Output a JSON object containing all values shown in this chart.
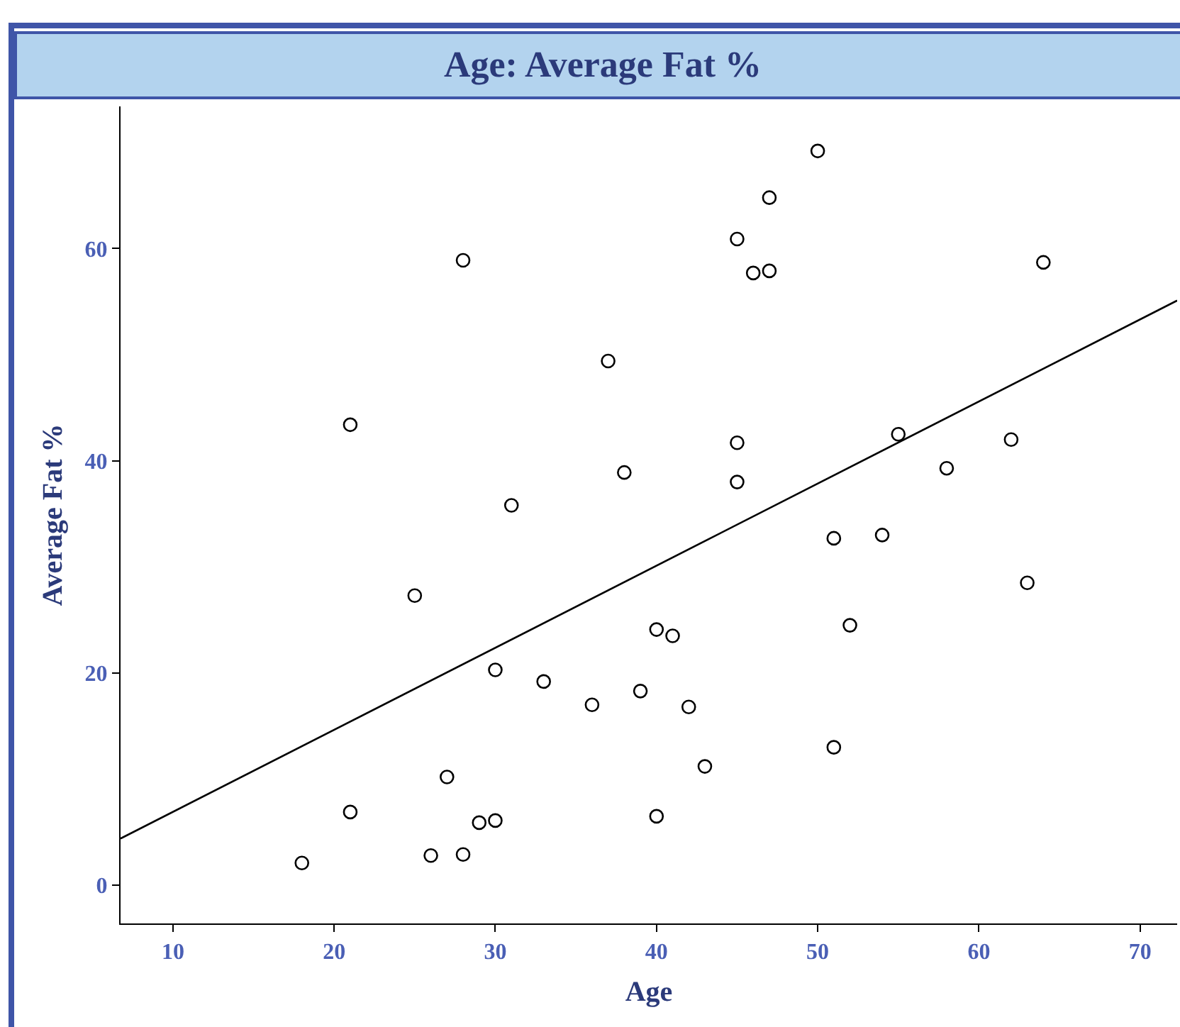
{
  "chart_data": {
    "type": "scatter",
    "title": "Age: Average Fat %",
    "xlabel": "Age",
    "ylabel": "Average Fat %",
    "xlim": [
      6.75,
      72.3
    ],
    "ylim": [
      -3.6,
      73.4
    ],
    "xticks": [
      10,
      20,
      30,
      40,
      50,
      60,
      70
    ],
    "yticks": [
      0,
      20,
      40,
      60
    ],
    "grid": false,
    "marker": "circle",
    "series": [
      {
        "color": "#000000",
        "x": [
          18,
          21,
          21,
          25,
          26,
          27,
          28,
          28,
          29,
          30,
          30,
          31,
          33,
          36,
          37,
          38,
          39,
          40,
          40,
          41,
          42,
          43,
          45,
          45,
          45,
          46,
          47,
          47,
          50,
          51,
          51,
          52,
          54,
          55,
          58,
          62,
          63,
          64
        ],
        "values": [
          2.1,
          43.4,
          6.9,
          27.3,
          2.8,
          10.2,
          58.9,
          2.9,
          5.9,
          6.1,
          20.3,
          35.8,
          19.2,
          17.0,
          49.4,
          38.9,
          18.3,
          24.1,
          6.5,
          23.5,
          16.8,
          11.2,
          60.9,
          41.7,
          38.0,
          57.7,
          64.8,
          57.9,
          69.2,
          32.7,
          13.0,
          24.5,
          33.0,
          42.5,
          39.3,
          42.0,
          28.5,
          58.7
        ]
      },
      {
        "type": "line",
        "color": "#000000",
        "line_style": "solid",
        "marker": "none",
        "x": [
          6.75,
          72.3
        ],
        "values": [
          4.4,
          55.1
        ]
      }
    ]
  }
}
